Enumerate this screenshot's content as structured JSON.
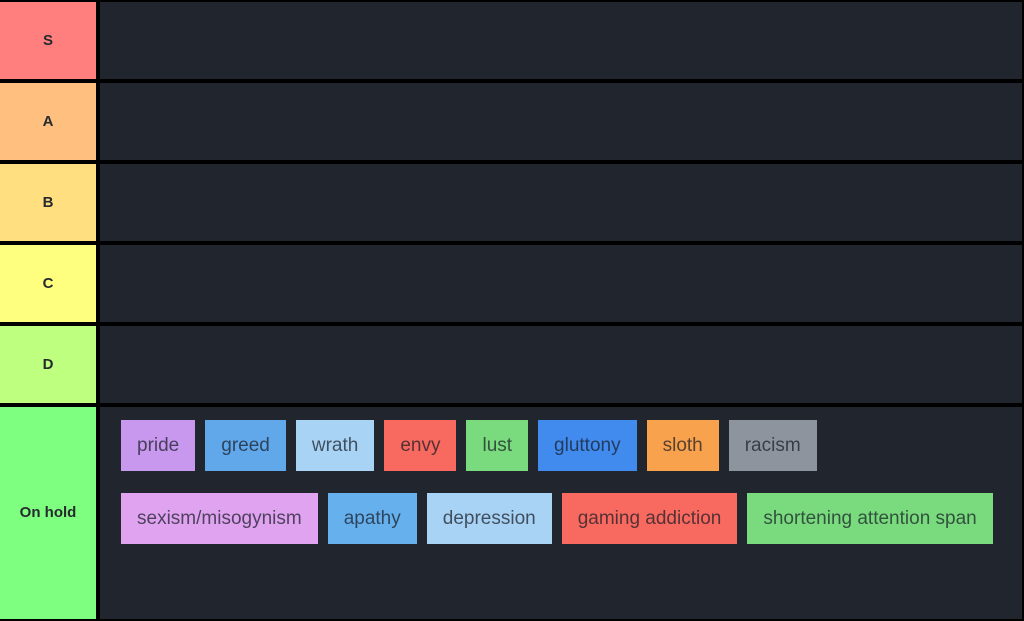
{
  "page": {
    "row_background": "#21252d",
    "divider_color": "#000000",
    "item_text_color": "rgba(22,28,38,0.72)",
    "label_text_color": "#26292e"
  },
  "tiers": [
    {
      "id": "s",
      "label": "S",
      "color": "#ff7f7f",
      "items": []
    },
    {
      "id": "a",
      "label": "A",
      "color": "#ffbf7f",
      "items": []
    },
    {
      "id": "b",
      "label": "B",
      "color": "#ffdf80",
      "items": []
    },
    {
      "id": "c",
      "label": "C",
      "color": "#ffff7f",
      "items": []
    },
    {
      "id": "d",
      "label": "D",
      "color": "#bfff7f",
      "items": []
    },
    {
      "id": "on-hold",
      "label": "On hold",
      "color": "#7eff80",
      "items": [
        {
          "label": "pride",
          "color": "#c897ee"
        },
        {
          "label": "greed",
          "color": "#61a8ea"
        },
        {
          "label": "wrath",
          "color": "#a9d3f5"
        },
        {
          "label": "envy",
          "color": "#f8695f"
        },
        {
          "label": "lust",
          "color": "#79db7d"
        },
        {
          "label": "gluttony",
          "color": "#418bef"
        },
        {
          "label": "sloth",
          "color": "#f9a24d"
        },
        {
          "label": "racism",
          "color": "#8e949d"
        },
        {
          "label": "sexism/misogynism",
          "color": "#dfa3f0"
        },
        {
          "label": "apathy",
          "color": "#67b0ee"
        },
        {
          "label": "depression",
          "color": "#a9d3f5"
        },
        {
          "label": "gaming addiction",
          "color": "#f8695f"
        },
        {
          "label": "shortening attention span",
          "color": "#79db7d"
        }
      ]
    }
  ]
}
